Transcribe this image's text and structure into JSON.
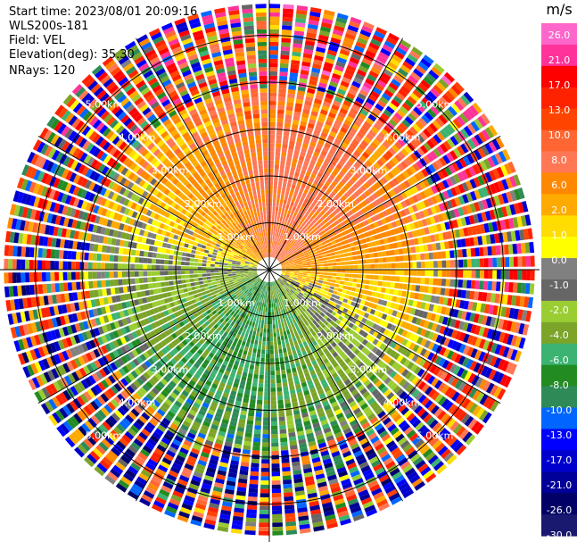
{
  "header": {
    "start_time": "Start time: 2023/08/01 20:09:16",
    "instrument": "WLS200s-181",
    "field": "Field: VEL",
    "elevation": "Elevation(deg): 35.30",
    "nrays": "NRays: 120"
  },
  "colorbar": {
    "unit": "m/s",
    "ticks": [
      "26.0",
      "21.0",
      "17.0",
      "13.0",
      "10.0",
      "8.0",
      "6.0",
      "2.0",
      "1.0",
      "0.0",
      "-1.0",
      "-2.0",
      "-4.0",
      "-6.0",
      "-8.0",
      "-10.0",
      "-13.0",
      "-17.0",
      "-21.0",
      "-26.0",
      "-30.0"
    ],
    "colors": [
      "#ff69b4",
      "#ff1493",
      "#ff0000",
      "#ff3300",
      "#ff5522",
      "#ff7744",
      "#ff8866",
      "#ff9900",
      "#ffcc00",
      "#ffff00",
      "#bbbbbb",
      "#777777",
      "#9acd32",
      "#6b8e23",
      "#228b22",
      "#2e8b57",
      "#1e90ff",
      "#0000ff",
      "#0000cd",
      "#00008b",
      "#191970",
      "#000066"
    ],
    "scale_colors": [
      "#ff66cc",
      "#ff3399",
      "#ff0000",
      "#ff2200",
      "#ff4400",
      "#ff6633",
      "#ff7755",
      "#ff8800",
      "#ffaa00",
      "#ffdd00",
      "#ffff00",
      "#808080",
      "#666666",
      "#9acd32",
      "#7ba428",
      "#3cb371",
      "#228b22",
      "#2e8b57",
      "#0066ff",
      "#0000ff",
      "#0000cc",
      "#000099",
      "#000066",
      "#191970"
    ]
  },
  "chart_data": {
    "type": "heatmap",
    "projection": "polar PPI",
    "field": "VEL",
    "units": "m/s",
    "n_rays": 120,
    "elevation_deg": 35.3,
    "vmin": -30.0,
    "vmax": 30.0,
    "range_rings_km": [
      1.0,
      2.0,
      3.0,
      4.0,
      5.0
    ],
    "ring_labels": [
      "1.00km",
      "2.00km",
      "3.00km",
      "4.00km",
      "5.00km"
    ],
    "spokes_deg": [
      0,
      30,
      60,
      90,
      120,
      150,
      180,
      210,
      240,
      270,
      300,
      330
    ],
    "max_range_km": 5.7
  }
}
